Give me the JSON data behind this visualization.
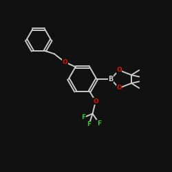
{
  "bg_color": "#111111",
  "bond_color": "#cccccc",
  "o_color": "#dd1100",
  "b_color": "#cccccc",
  "f_color": "#33cc33",
  "lw": 1.4,
  "fs": 6.5,
  "xlim": [
    0,
    10
  ],
  "ylim": [
    0,
    10
  ],
  "figsize": [
    2.5,
    2.5
  ],
  "dpi": 100
}
